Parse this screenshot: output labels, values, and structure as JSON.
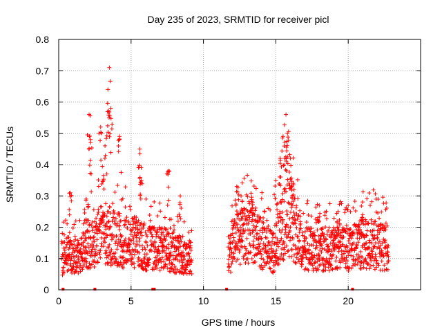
{
  "chart_data": {
    "type": "scatter",
    "title": "Day 235 of 2023, SRMTID for receiver picl",
    "xlabel": "GPS time / hours",
    "ylabel": "SRMTID / TECUs",
    "xlim": [
      0,
      25
    ],
    "ylim": [
      0,
      0.8
    ],
    "x_ticks": [
      0,
      5,
      10,
      15,
      20
    ],
    "y_ticks": [
      0,
      0.1,
      0.2,
      0.3,
      0.4,
      0.5,
      0.6,
      0.7,
      0.8
    ],
    "grid": true,
    "marker": "+",
    "series": [
      {
        "name": "SRMTID",
        "color": "#ff0000",
        "segments": [
          {
            "x_start": 0.2,
            "x_end": 9.2,
            "baseline": [
              [
                0.2,
                0.1
              ],
              [
                0.7,
                0.11
              ],
              [
                1.2,
                0.1
              ],
              [
                1.7,
                0.11
              ],
              [
                2.2,
                0.14
              ],
              [
                2.8,
                0.17
              ],
              [
                3.3,
                0.18
              ],
              [
                3.8,
                0.16
              ],
              [
                4.5,
                0.15
              ],
              [
                5.2,
                0.15
              ],
              [
                5.8,
                0.14
              ],
              [
                6.5,
                0.13
              ],
              [
                7.2,
                0.13
              ],
              [
                7.8,
                0.12
              ],
              [
                8.5,
                0.11
              ],
              [
                9.2,
                0.1
              ]
            ],
            "peaks": [
              [
                0.8,
                0.31
              ],
              [
                1.9,
                0.29
              ],
              [
                2.1,
                0.56
              ],
              [
                2.2,
                0.48
              ],
              [
                2.9,
                0.52
              ],
              [
                3.2,
                0.46
              ],
              [
                3.4,
                0.64
              ],
              [
                3.5,
                0.71
              ],
              [
                3.6,
                0.58
              ],
              [
                4.2,
                0.49
              ],
              [
                5.6,
                0.45
              ],
              [
                5.7,
                0.39
              ],
              [
                7.6,
                0.38
              ],
              [
                8.4,
                0.3
              ]
            ]
          },
          {
            "x_start": 11.7,
            "x_end": 22.8,
            "baseline": [
              [
                11.7,
                0.11
              ],
              [
                12.3,
                0.16
              ],
              [
                12.8,
                0.17
              ],
              [
                13.3,
                0.19
              ],
              [
                13.8,
                0.16
              ],
              [
                14.3,
                0.13
              ],
              [
                14.8,
                0.12
              ],
              [
                15.3,
                0.18
              ],
              [
                15.8,
                0.24
              ],
              [
                16.2,
                0.2
              ],
              [
                16.8,
                0.13
              ],
              [
                17.5,
                0.13
              ],
              [
                18.3,
                0.13
              ],
              [
                19.2,
                0.13
              ],
              [
                20.0,
                0.13
              ],
              [
                20.8,
                0.14
              ],
              [
                21.5,
                0.15
              ],
              [
                22.2,
                0.14
              ],
              [
                22.8,
                0.13
              ]
            ],
            "peaks": [
              [
                12.3,
                0.33
              ],
              [
                12.6,
                0.3
              ],
              [
                13.4,
                0.28
              ],
              [
                15.0,
                0.35
              ],
              [
                15.3,
                0.42
              ],
              [
                15.5,
                0.49
              ],
              [
                15.7,
                0.56
              ],
              [
                15.8,
                0.5
              ],
              [
                16.0,
                0.42
              ],
              [
                16.2,
                0.34
              ],
              [
                18.0,
                0.27
              ],
              [
                19.3,
                0.25
              ],
              [
                21.0,
                0.24
              ]
            ]
          }
        ],
        "axis_markers_x": [
          0.3,
          2.5,
          6.5,
          6.6,
          11.6,
          20.3
        ]
      }
    ]
  }
}
